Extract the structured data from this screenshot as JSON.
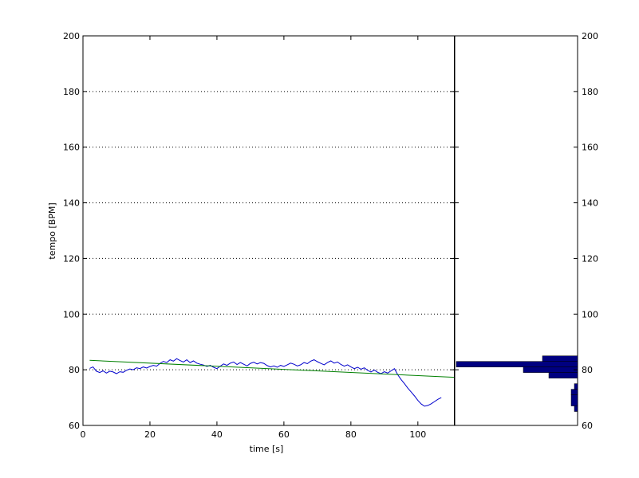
{
  "chart_data": [
    {
      "type": "line",
      "xlabel": "time [s]",
      "ylabel": "tempo [BPM]",
      "xlim": [
        0,
        111
      ],
      "ylim": [
        60,
        200
      ],
      "x_ticks": [
        0,
        20,
        40,
        60,
        80,
        100
      ],
      "y_ticks": [
        60,
        80,
        100,
        120,
        140,
        160,
        180,
        200
      ],
      "grid": "horizontal dotted",
      "series": [
        {
          "color": "#0000cc",
          "points": [
            [
              2.0,
              80.5
            ],
            [
              3.0,
              81.0
            ],
            [
              4.0,
              79.5
            ],
            [
              5.0,
              79.0
            ],
            [
              6.0,
              79.6
            ],
            [
              7.0,
              78.8
            ],
            [
              8.0,
              79.5
            ],
            [
              9.0,
              79.2
            ],
            [
              10.0,
              78.6
            ],
            [
              11.0,
              79.3
            ],
            [
              12.0,
              79.1
            ],
            [
              13.0,
              79.8
            ],
            [
              14.0,
              80.3
            ],
            [
              15.0,
              80.0
            ],
            [
              16.0,
              80.7
            ],
            [
              17.0,
              80.4
            ],
            [
              18.0,
              81.0
            ],
            [
              19.0,
              80.6
            ],
            [
              20.0,
              81.2
            ],
            [
              21.0,
              81.6
            ],
            [
              22.0,
              81.3
            ],
            [
              23.0,
              82.3
            ],
            [
              24.0,
              83.0
            ],
            [
              25.0,
              82.6
            ],
            [
              26.0,
              83.6
            ],
            [
              27.0,
              83.1
            ],
            [
              28.0,
              84.0
            ],
            [
              29.0,
              83.3
            ],
            [
              30.0,
              82.8
            ],
            [
              31.0,
              83.6
            ],
            [
              32.0,
              82.6
            ],
            [
              33.0,
              83.2
            ],
            [
              34.0,
              82.4
            ],
            [
              35.0,
              82.0
            ],
            [
              36.0,
              81.7
            ],
            [
              37.0,
              81.2
            ],
            [
              38.0,
              81.6
            ],
            [
              39.0,
              80.9
            ],
            [
              40.0,
              80.4
            ],
            [
              41.0,
              81.3
            ],
            [
              42.0,
              82.1
            ],
            [
              43.0,
              81.6
            ],
            [
              44.0,
              82.4
            ],
            [
              45.0,
              82.8
            ],
            [
              46.0,
              81.9
            ],
            [
              47.0,
              82.6
            ],
            [
              48.0,
              82.0
            ],
            [
              49.0,
              81.4
            ],
            [
              50.0,
              82.3
            ],
            [
              51.0,
              82.7
            ],
            [
              52.0,
              82.1
            ],
            [
              53.0,
              82.6
            ],
            [
              54.0,
              82.3
            ],
            [
              55.0,
              81.5
            ],
            [
              56.0,
              81.0
            ],
            [
              57.0,
              81.4
            ],
            [
              58.0,
              80.9
            ],
            [
              59.0,
              81.6
            ],
            [
              60.0,
              81.2
            ],
            [
              61.0,
              81.8
            ],
            [
              62.0,
              82.4
            ],
            [
              63.0,
              82.0
            ],
            [
              64.0,
              81.4
            ],
            [
              65.0,
              81.8
            ],
            [
              66.0,
              82.6
            ],
            [
              67.0,
              82.2
            ],
            [
              68.0,
              83.1
            ],
            [
              69.0,
              83.6
            ],
            [
              70.0,
              82.9
            ],
            [
              71.0,
              82.3
            ],
            [
              72.0,
              81.8
            ],
            [
              73.0,
              82.6
            ],
            [
              74.0,
              83.2
            ],
            [
              75.0,
              82.4
            ],
            [
              76.0,
              82.8
            ],
            [
              77.0,
              81.9
            ],
            [
              78.0,
              81.3
            ],
            [
              79.0,
              81.8
            ],
            [
              80.0,
              81.0
            ],
            [
              81.0,
              80.4
            ],
            [
              82.0,
              80.9
            ],
            [
              83.0,
              80.2
            ],
            [
              84.0,
              80.7
            ],
            [
              85.0,
              79.8
            ],
            [
              86.0,
              79.2
            ],
            [
              87.0,
              79.9
            ],
            [
              88.0,
              79.1
            ],
            [
              89.0,
              78.6
            ],
            [
              90.0,
              79.3
            ],
            [
              91.0,
              78.8
            ],
            [
              92.0,
              79.6
            ],
            [
              93.0,
              80.4
            ],
            [
              94.0,
              78.2
            ],
            [
              95.0,
              76.5
            ],
            [
              96.0,
              75.0
            ],
            [
              97.0,
              73.4
            ],
            [
              98.0,
              72.0
            ],
            [
              99.0,
              70.6
            ],
            [
              100.0,
              69.0
            ],
            [
              101.0,
              67.7
            ],
            [
              102.0,
              66.9
            ],
            [
              103.0,
              67.2
            ],
            [
              104.0,
              67.8
            ],
            [
              105.0,
              68.6
            ],
            [
              106.0,
              69.4
            ],
            [
              107.0,
              70.0
            ]
          ]
        },
        {
          "color": "#008000",
          "points": [
            [
              2.0,
              83.4
            ],
            [
              111.0,
              77.3
            ]
          ]
        }
      ]
    },
    {
      "type": "bar",
      "orientation": "horizontal",
      "ylim": [
        60,
        200
      ],
      "y_ticks": [
        60,
        80,
        100,
        120,
        140,
        160,
        180,
        200
      ],
      "bar_color": "#000080",
      "bins": [
        {
          "from": 81.0,
          "to": 83.0,
          "count": 38
        },
        {
          "from": 83.0,
          "to": 85.0,
          "count": 11
        },
        {
          "from": 79.0,
          "to": 81.0,
          "count": 17
        },
        {
          "from": 77.0,
          "to": 79.0,
          "count": 9
        },
        {
          "from": 73.0,
          "to": 75.0,
          "count": 1
        },
        {
          "from": 71.0,
          "to": 73.0,
          "count": 2
        },
        {
          "from": 67.0,
          "to": 71.0,
          "count": 2
        },
        {
          "from": 65.0,
          "to": 67.0,
          "count": 1
        }
      ]
    }
  ]
}
